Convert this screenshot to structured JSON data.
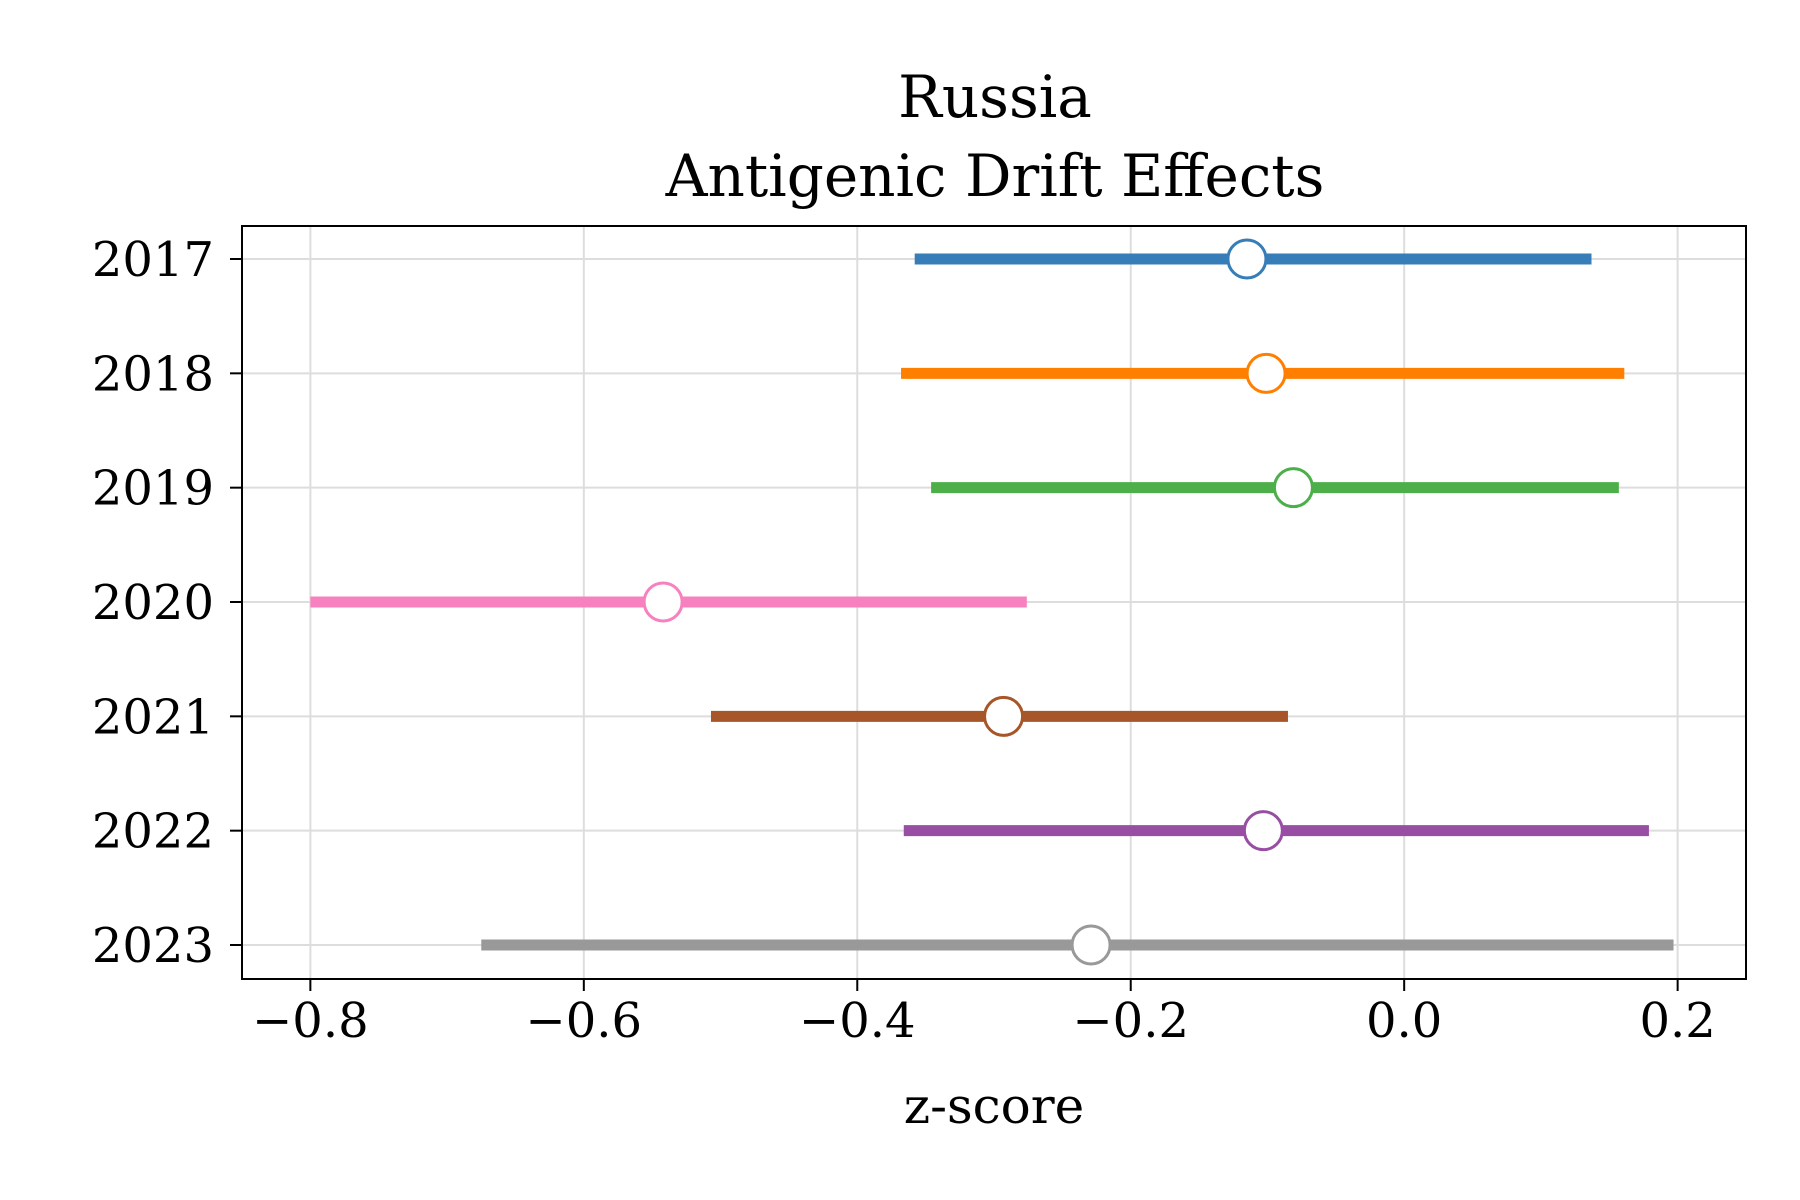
{
  "chart_data": {
    "type": "forest",
    "title_lines": [
      "Russia",
      "Antigenic Drift Effects"
    ],
    "xlabel": "z-score",
    "ylabel": "",
    "xlim": [
      -0.85,
      0.25
    ],
    "xticks": [
      -0.8,
      -0.6,
      -0.4,
      -0.2,
      0.0,
      0.2
    ],
    "xtick_labels": [
      "−0.8",
      "−0.6",
      "−0.4",
      "−0.2",
      "0.0",
      "0.2"
    ],
    "grid": true,
    "categories": [
      "2017",
      "2018",
      "2019",
      "2020",
      "2021",
      "2022",
      "2023"
    ],
    "estimates": [
      -0.115,
      -0.101,
      -0.081,
      -0.542,
      -0.293,
      -0.103,
      -0.229
    ],
    "lower": [
      -0.358,
      -0.368,
      -0.346,
      -0.8,
      -0.507,
      -0.366,
      -0.675
    ],
    "upper": [
      0.137,
      0.161,
      0.157,
      -0.276,
      -0.085,
      0.179,
      0.197
    ],
    "colors": [
      "#377eb8",
      "#ff7f00",
      "#4daf4a",
      "#f781bf",
      "#a65628",
      "#984ea3",
      "#999999"
    ]
  }
}
